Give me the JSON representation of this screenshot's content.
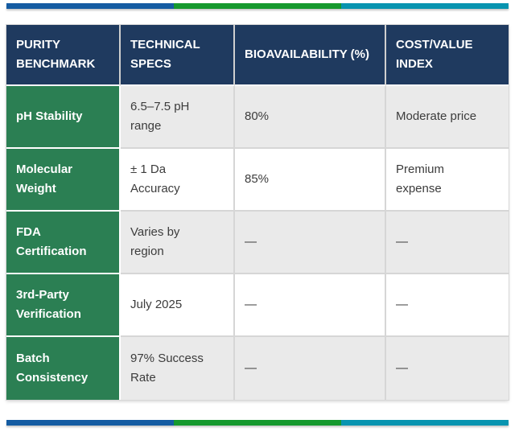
{
  "colors": {
    "navy": "#1F3A5F",
    "green": "#2B7F53",
    "bar-blue": "#155CA2",
    "bar-green": "#16992E",
    "bar-teal": "#0894B0",
    "row-alt": "#EAEAEA",
    "text": "#3C3C3C"
  },
  "accent_bar": {
    "segments": [
      "blue",
      "green",
      "teal"
    ]
  },
  "table": {
    "columns": [
      "PURITY BENCHMARK",
      "TECHNICAL SPECS",
      "BIOAVAILABILITY (%)",
      "COST/VALUE INDEX"
    ],
    "rows": [
      {
        "benchmark": "pH Stability",
        "specs": "6.5–7.5 pH range",
        "bioavailability": "80%",
        "cost": "Moderate price"
      },
      {
        "benchmark": "Molecular Weight",
        "specs": "± 1 Da Accuracy",
        "bioavailability": "85%",
        "cost": "Premium expense"
      },
      {
        "benchmark": "FDA Certification",
        "specs": "Varies by region",
        "bioavailability": "—",
        "cost": "—"
      },
      {
        "benchmark": "3rd-Party Verification",
        "specs": "July 2025",
        "bioavailability": "—",
        "cost": "—"
      },
      {
        "benchmark": "Batch Consistency",
        "specs": "97% Success Rate",
        "bioavailability": "—",
        "cost": "—"
      }
    ]
  }
}
